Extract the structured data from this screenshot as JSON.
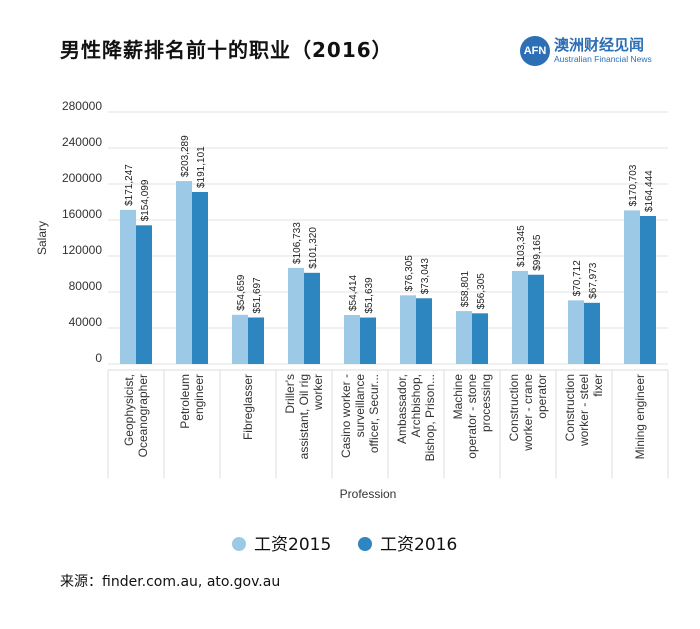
{
  "header": {
    "title": "男性降薪排名前十的职业（2016）",
    "brand_logo": "AFN",
    "brand_cn": "澳洲财经见闻",
    "brand_en": "Australian Financial News"
  },
  "chart_data": {
    "type": "bar",
    "title": "男性降薪排名前十的职业（2016）",
    "xlabel": "Profession",
    "ylabel": "Salary",
    "ylim": [
      0,
      280000
    ],
    "yticks": [
      "0",
      "40000",
      "80000",
      "120000",
      "160000",
      "200000",
      "240000",
      "280000"
    ],
    "grid": true,
    "legend_position": "bottom",
    "categories": [
      [
        "Geophysicist,",
        "Oceanographer"
      ],
      [
        "Petroleum",
        "engineer"
      ],
      [
        "Fibreglasser"
      ],
      [
        "Driller's",
        "assistant, Oil rig",
        "worker"
      ],
      [
        "Casino worker -",
        "surveillance",
        "officer, Secur..."
      ],
      [
        "Ambassador,",
        "Archbishop,",
        "Bishop, Prison..."
      ],
      [
        "Machine",
        "operator - stone",
        "processing"
      ],
      [
        "Construction",
        "worker - crane",
        "operator"
      ],
      [
        "Construction",
        "worker - steel",
        "fixer"
      ],
      [
        "Mining engineer"
      ]
    ],
    "series": [
      {
        "name": "工资2015",
        "color": "#9ccae6",
        "values": [
          171247,
          203289,
          54659,
          106733,
          54414,
          76305,
          58801,
          103345,
          70712,
          170703
        ],
        "labels": [
          "$171,247",
          "$203,289",
          "$54,659",
          "$106,733",
          "$54,414",
          "$76,305",
          "$58,801",
          "$103,345",
          "$70,712",
          "$170,703"
        ]
      },
      {
        "name": "工资2016",
        "color": "#2e86c1",
        "values": [
          154099,
          191101,
          51697,
          101320,
          51639,
          73043,
          56305,
          99165,
          67973,
          164444
        ],
        "labels": [
          "$154,099",
          "$191,101",
          "$51,697",
          "$101,320",
          "$51,639",
          "$73,043",
          "$56,305",
          "$99,165",
          "$67,973",
          "$164,444"
        ]
      }
    ]
  },
  "legend": {
    "items": [
      {
        "label": "工资2015",
        "color": "#9ccae6"
      },
      {
        "label": "工资2016",
        "color": "#2e86c1"
      }
    ]
  },
  "footer": {
    "source": "来源：finder.com.au, ato.gov.au"
  }
}
